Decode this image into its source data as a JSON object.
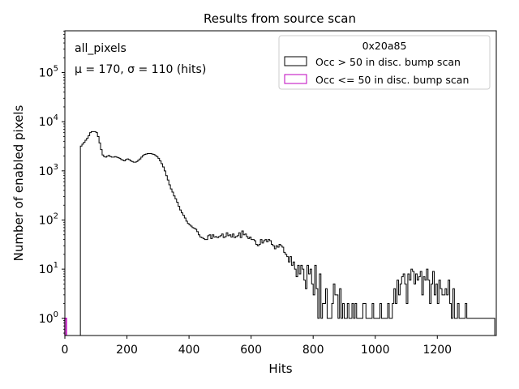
{
  "chart_data": {
    "type": "histogram-step",
    "title": "Results from source scan",
    "xlabel": "Hits",
    "ylabel": "Number of enabled pixels",
    "xlim": [
      0,
      1390
    ],
    "ylim_log10": [
      -0.35,
      5.85
    ],
    "yscale": "log",
    "bin_width": 5,
    "x_ticks": [
      {
        "value": 0,
        "label": "0"
      },
      {
        "value": 200,
        "label": "200"
      },
      {
        "value": 400,
        "label": "400"
      },
      {
        "value": 600,
        "label": "600"
      },
      {
        "value": 800,
        "label": "800"
      },
      {
        "value": 1000,
        "label": "1000"
      },
      {
        "value": 1200,
        "label": "1200"
      }
    ],
    "y_ticks": [
      {
        "exp": 0,
        "base": "10",
        "sup": "0"
      },
      {
        "exp": 1,
        "base": "10",
        "sup": "1"
      },
      {
        "exp": 2,
        "base": "10",
        "sup": "2"
      },
      {
        "exp": 3,
        "base": "10",
        "sup": "3"
      },
      {
        "exp": 4,
        "base": "10",
        "sup": "4"
      },
      {
        "exp": 5,
        "base": "10",
        "sup": "5"
      }
    ],
    "annotations": {
      "selection": "all_pixels",
      "stats": "μ = 170, σ = 110 (hits)"
    },
    "legend": {
      "title": "0x20a85",
      "placement": "top-right",
      "entries": [
        {
          "label": "Occ > 50 in disc. bump scan",
          "color": "#000000"
        },
        {
          "label": "Occ <= 50 in disc. bump scan",
          "color": "#bf00bf"
        }
      ]
    },
    "series": [
      {
        "name": "Occ > 50 in disc. bump scan",
        "color": "#000000",
        "points": [
          [
            50,
            3200
          ],
          [
            55,
            3500
          ],
          [
            60,
            3800
          ],
          [
            65,
            4200
          ],
          [
            70,
            4600
          ],
          [
            75,
            5200
          ],
          [
            80,
            6000
          ],
          [
            85,
            6300
          ],
          [
            90,
            6300
          ],
          [
            95,
            6300
          ],
          [
            100,
            6000
          ],
          [
            105,
            5000
          ],
          [
            110,
            3700
          ],
          [
            115,
            2700
          ],
          [
            120,
            2100
          ],
          [
            125,
            1950
          ],
          [
            130,
            1900
          ],
          [
            135,
            2000
          ],
          [
            140,
            2050
          ],
          [
            145,
            1950
          ],
          [
            150,
            1900
          ],
          [
            155,
            1900
          ],
          [
            160,
            1950
          ],
          [
            165,
            1900
          ],
          [
            170,
            1850
          ],
          [
            175,
            1800
          ],
          [
            180,
            1700
          ],
          [
            185,
            1650
          ],
          [
            190,
            1600
          ],
          [
            195,
            1700
          ],
          [
            200,
            1750
          ],
          [
            205,
            1700
          ],
          [
            210,
            1600
          ],
          [
            215,
            1550
          ],
          [
            220,
            1500
          ],
          [
            225,
            1500
          ],
          [
            230,
            1550
          ],
          [
            235,
            1650
          ],
          [
            240,
            1750
          ],
          [
            245,
            1900
          ],
          [
            250,
            2050
          ],
          [
            255,
            2150
          ],
          [
            260,
            2200
          ],
          [
            265,
            2250
          ],
          [
            270,
            2250
          ],
          [
            275,
            2250
          ],
          [
            280,
            2200
          ],
          [
            285,
            2150
          ],
          [
            290,
            2050
          ],
          [
            295,
            1950
          ],
          [
            300,
            1800
          ],
          [
            305,
            1600
          ],
          [
            310,
            1400
          ],
          [
            315,
            1200
          ],
          [
            320,
            1000
          ],
          [
            325,
            800
          ],
          [
            330,
            650
          ],
          [
            335,
            520
          ],
          [
            340,
            430
          ],
          [
            345,
            370
          ],
          [
            350,
            310
          ],
          [
            355,
            270
          ],
          [
            360,
            230
          ],
          [
            365,
            190
          ],
          [
            370,
            160
          ],
          [
            375,
            140
          ],
          [
            380,
            125
          ],
          [
            385,
            110
          ],
          [
            390,
            95
          ],
          [
            395,
            85
          ],
          [
            400,
            80
          ],
          [
            405,
            75
          ],
          [
            410,
            70
          ],
          [
            415,
            68
          ],
          [
            420,
            65
          ],
          [
            425,
            58
          ],
          [
            430,
            50
          ],
          [
            435,
            45
          ],
          [
            440,
            44
          ],
          [
            445,
            42
          ],
          [
            450,
            40
          ],
          [
            455,
            40
          ],
          [
            460,
            48
          ],
          [
            465,
            50
          ],
          [
            470,
            42
          ],
          [
            475,
            50
          ],
          [
            480,
            45
          ],
          [
            485,
            46
          ],
          [
            490,
            44
          ],
          [
            495,
            46
          ],
          [
            500,
            48
          ],
          [
            505,
            52
          ],
          [
            510,
            44
          ],
          [
            515,
            46
          ],
          [
            520,
            55
          ],
          [
            525,
            48
          ],
          [
            530,
            50
          ],
          [
            535,
            45
          ],
          [
            540,
            52
          ],
          [
            545,
            44
          ],
          [
            550,
            46
          ],
          [
            555,
            48
          ],
          [
            560,
            55
          ],
          [
            565,
            44
          ],
          [
            570,
            60
          ],
          [
            575,
            50
          ],
          [
            580,
            52
          ],
          [
            585,
            46
          ],
          [
            590,
            42
          ],
          [
            595,
            45
          ],
          [
            600,
            40
          ],
          [
            605,
            40
          ],
          [
            610,
            38
          ],
          [
            615,
            32
          ],
          [
            620,
            30
          ],
          [
            625,
            32
          ],
          [
            630,
            40
          ],
          [
            635,
            34
          ],
          [
            640,
            38
          ],
          [
            645,
            40
          ],
          [
            650,
            36
          ],
          [
            655,
            40
          ],
          [
            660,
            38
          ],
          [
            665,
            32
          ],
          [
            670,
            30
          ],
          [
            675,
            26
          ],
          [
            680,
            30
          ],
          [
            685,
            28
          ],
          [
            690,
            32
          ],
          [
            695,
            30
          ],
          [
            700,
            28
          ],
          [
            705,
            22
          ],
          [
            710,
            20
          ],
          [
            715,
            18
          ],
          [
            720,
            14
          ],
          [
            725,
            18
          ],
          [
            730,
            12
          ],
          [
            735,
            14
          ],
          [
            740,
            10
          ],
          [
            745,
            7
          ],
          [
            750,
            12
          ],
          [
            755,
            8
          ],
          [
            760,
            12
          ],
          [
            765,
            10
          ],
          [
            770,
            6
          ],
          [
            775,
            4
          ],
          [
            780,
            12
          ],
          [
            785,
            8
          ],
          [
            790,
            10
          ],
          [
            795,
            5
          ],
          [
            800,
            3
          ],
          [
            805,
            12
          ],
          [
            810,
            4
          ],
          [
            815,
            1
          ],
          [
            820,
            8
          ],
          [
            825,
            1
          ],
          [
            830,
            2
          ],
          [
            835,
            2
          ],
          [
            840,
            4
          ],
          [
            845,
            1
          ],
          [
            850,
            1
          ],
          [
            855,
            1
          ],
          [
            860,
            2
          ],
          [
            865,
            5
          ],
          [
            870,
            3
          ],
          [
            875,
            3
          ],
          [
            880,
            1
          ],
          [
            885,
            4
          ],
          [
            890,
            1
          ],
          [
            895,
            2
          ],
          [
            900,
            1
          ],
          [
            905,
            1
          ],
          [
            910,
            2
          ],
          [
            915,
            1
          ],
          [
            920,
            1
          ],
          [
            925,
            2
          ],
          [
            930,
            1
          ],
          [
            935,
            2
          ],
          [
            940,
            1
          ],
          [
            945,
            1
          ],
          [
            950,
            1
          ],
          [
            955,
            1
          ],
          [
            960,
            2
          ],
          [
            965,
            2
          ],
          [
            970,
            1
          ],
          [
            975,
            1
          ],
          [
            980,
            1
          ],
          [
            985,
            1
          ],
          [
            990,
            2
          ],
          [
            995,
            1
          ],
          [
            1000,
            1
          ],
          [
            1005,
            1
          ],
          [
            1010,
            1
          ],
          [
            1015,
            2
          ],
          [
            1020,
            1
          ],
          [
            1025,
            1
          ],
          [
            1030,
            1
          ],
          [
            1035,
            1
          ],
          [
            1040,
            2
          ],
          [
            1045,
            1
          ],
          [
            1050,
            1
          ],
          [
            1055,
            2
          ],
          [
            1060,
            4
          ],
          [
            1065,
            2
          ],
          [
            1070,
            6
          ],
          [
            1075,
            3
          ],
          [
            1080,
            5
          ],
          [
            1085,
            7
          ],
          [
            1090,
            8
          ],
          [
            1095,
            5
          ],
          [
            1100,
            2
          ],
          [
            1105,
            8
          ],
          [
            1110,
            6
          ],
          [
            1115,
            10
          ],
          [
            1120,
            9
          ],
          [
            1125,
            5
          ],
          [
            1130,
            8
          ],
          [
            1135,
            6
          ],
          [
            1140,
            7
          ],
          [
            1145,
            9
          ],
          [
            1150,
            3
          ],
          [
            1155,
            7
          ],
          [
            1160,
            6
          ],
          [
            1165,
            10
          ],
          [
            1170,
            6
          ],
          [
            1175,
            2
          ],
          [
            1180,
            5
          ],
          [
            1185,
            9
          ],
          [
            1190,
            3
          ],
          [
            1195,
            5
          ],
          [
            1200,
            2
          ],
          [
            1205,
            6
          ],
          [
            1210,
            4
          ],
          [
            1215,
            3
          ],
          [
            1220,
            3
          ],
          [
            1225,
            4
          ],
          [
            1230,
            3
          ],
          [
            1235,
            6
          ],
          [
            1240,
            2
          ],
          [
            1245,
            1
          ],
          [
            1250,
            4
          ],
          [
            1255,
            1
          ],
          [
            1260,
            1
          ],
          [
            1265,
            2
          ],
          [
            1270,
            1
          ],
          [
            1275,
            1
          ],
          [
            1280,
            1
          ],
          [
            1285,
            1
          ],
          [
            1290,
            2
          ],
          [
            1295,
            1
          ],
          [
            1300,
            1
          ],
          [
            1305,
            1
          ],
          [
            1310,
            1
          ],
          [
            1315,
            1
          ],
          [
            1320,
            1
          ],
          [
            1325,
            1
          ],
          [
            1330,
            1
          ],
          [
            1335,
            1
          ],
          [
            1340,
            1
          ],
          [
            1345,
            1
          ],
          [
            1350,
            1
          ],
          [
            1355,
            1
          ],
          [
            1360,
            1
          ],
          [
            1365,
            1
          ],
          [
            1370,
            1
          ],
          [
            1375,
            1
          ],
          [
            1380,
            1
          ]
        ]
      },
      {
        "name": "Occ <= 50 in disc. bump scan",
        "color": "#bf00bf",
        "points": [
          [
            0,
            1
          ]
        ]
      }
    ]
  }
}
